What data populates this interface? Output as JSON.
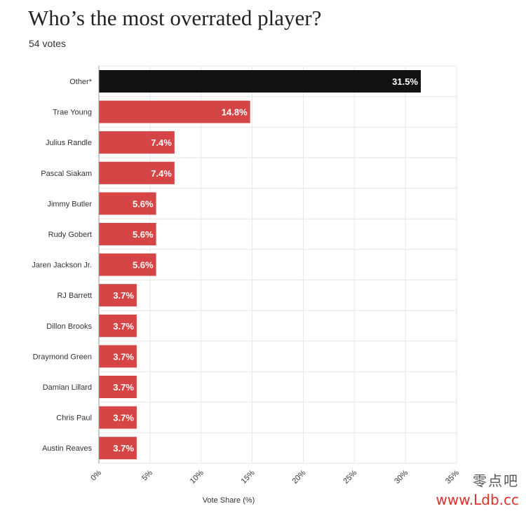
{
  "title": "Who’s the most overrated player?",
  "subtitle": "54 votes",
  "chart_data": {
    "type": "bar",
    "orientation": "horizontal",
    "categories": [
      "Other*",
      "Trae Young",
      "Julius Randle",
      "Pascal Siakam",
      "Jimmy Butler",
      "Rudy Gobert",
      "Jaren Jackson Jr.",
      "RJ Barrett",
      "Dillon Brooks",
      "Draymond Green",
      "Damian Lillard",
      "Chris Paul",
      "Austin Reaves"
    ],
    "values": [
      31.5,
      14.8,
      7.4,
      7.4,
      5.6,
      5.6,
      5.6,
      3.7,
      3.7,
      3.7,
      3.7,
      3.7,
      3.7
    ],
    "value_labels": [
      "31.5%",
      "14.8%",
      "7.4%",
      "7.4%",
      "5.6%",
      "5.6%",
      "5.6%",
      "3.7%",
      "3.7%",
      "3.7%",
      "3.7%",
      "3.7%",
      "3.7%"
    ],
    "xlabel": "Vote Share (%)",
    "xlim": [
      0,
      35
    ],
    "xticks": [
      0,
      5,
      10,
      15,
      20,
      25,
      30,
      35
    ],
    "xtick_labels": [
      "0%",
      "5%",
      "10%",
      "15%",
      "20%",
      "25%",
      "30%",
      "35%"
    ],
    "grid": true,
    "colors": {
      "highlight": "#111111",
      "default": "#d64545",
      "grid": "#e6e6e6",
      "label": "#333333",
      "value_text": "#ffffff"
    }
  },
  "watermark": {
    "cn": "零点吧",
    "url": "www.Ldb.cc"
  }
}
